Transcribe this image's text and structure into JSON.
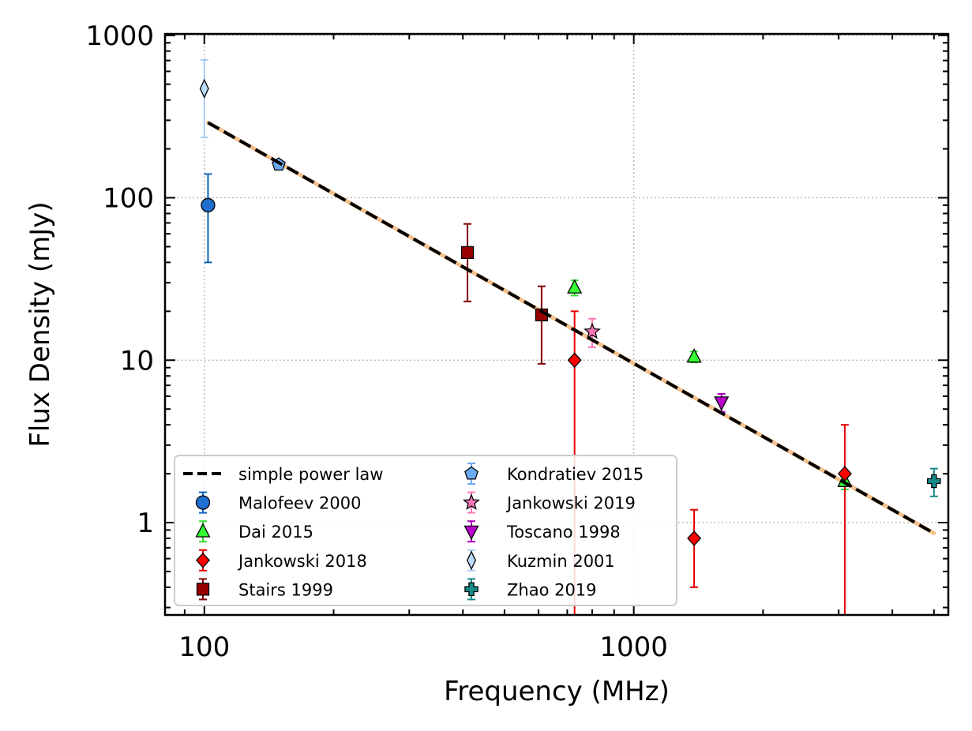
{
  "chart_data": {
    "type": "scatter",
    "xlabel": "Frequency (MHz)",
    "ylabel": "Flux Density (mJy)",
    "xscale": "log",
    "yscale": "log",
    "xlim": [
      81,
      5400
    ],
    "ylim": [
      0.27,
      1020
    ],
    "x_tick_labels": [
      {
        "value": 100,
        "label": "100"
      },
      {
        "value": 1000,
        "label": "1000"
      }
    ],
    "y_tick_labels": [
      {
        "value": 1,
        "label": "1"
      },
      {
        "value": 10,
        "label": "10"
      },
      {
        "value": 100,
        "label": "100"
      },
      {
        "value": 1000,
        "label": "1000"
      }
    ],
    "grid": true,
    "legend_position": "lower-left",
    "power_law": {
      "name": "simple power law",
      "x": [
        102,
        5000
      ],
      "y": [
        290,
        0.86
      ],
      "color": "#000000",
      "band_color": "#f5c08c"
    },
    "series": [
      {
        "name": "Malofeev 2000",
        "marker": "circle",
        "color": "#1f6fd1",
        "ecolor": "#0d63c0",
        "points": [
          {
            "x": 102,
            "y": 90,
            "ylo": 40,
            "yhi": 140
          }
        ]
      },
      {
        "name": "Dai 2015",
        "marker": "triangle-up",
        "color": "#33ff33",
        "ecolor": "#33dd33",
        "points": [
          {
            "x": 728,
            "y": 28,
            "ylo": 25,
            "yhi": 31
          },
          {
            "x": 1382,
            "y": 10.5,
            "ylo": 9.7,
            "yhi": 11.3
          },
          {
            "x": 3100,
            "y": 1.8,
            "ylo": 1.6,
            "yhi": 2.0
          }
        ]
      },
      {
        "name": "Jankowski 2018",
        "marker": "diamond",
        "color": "#ff0000",
        "ecolor": "#e60000",
        "points": [
          {
            "x": 728,
            "y": 10,
            "ylo": 0.27,
            "yhi": 20
          },
          {
            "x": 1382,
            "y": 0.8,
            "ylo": 0.4,
            "yhi": 1.2
          },
          {
            "x": 3100,
            "y": 2.0,
            "ylo": 0.27,
            "yhi": 4.0
          }
        ]
      },
      {
        "name": "Stairs 1999",
        "marker": "square",
        "color": "#990000",
        "ecolor": "#800000",
        "points": [
          {
            "x": 410,
            "y": 46,
            "ylo": 23,
            "yhi": 69
          },
          {
            "x": 610,
            "y": 19,
            "ylo": 9.5,
            "yhi": 28.5
          }
        ]
      },
      {
        "name": "Kondratiev 2015",
        "marker": "pentagon",
        "color": "#6aaaf0",
        "ecolor": "#6aaaf0",
        "points": [
          {
            "x": 149,
            "y": 160,
            "ylo": 150,
            "yhi": 170
          }
        ]
      },
      {
        "name": "Jankowski 2019",
        "marker": "star",
        "color": "#ff77bb",
        "ecolor": "#ff77bb",
        "points": [
          {
            "x": 800,
            "y": 15,
            "ylo": 12,
            "yhi": 18
          }
        ]
      },
      {
        "name": "Toscano 1998",
        "marker": "triangle-down",
        "color": "#bb00cc",
        "ecolor": "#aa00bb",
        "points": [
          {
            "x": 1600,
            "y": 5.5,
            "ylo": 4.8,
            "yhi": 6.2
          }
        ]
      },
      {
        "name": "Kuzmin 2001",
        "marker": "thin-diamond",
        "color": "#bcdcff",
        "ecolor": "#a8ccf5",
        "points": [
          {
            "x": 100,
            "y": 470,
            "ylo": 235,
            "yhi": 705
          }
        ]
      },
      {
        "name": "Zhao 2019",
        "marker": "plus",
        "color": "#148a8a",
        "ecolor": "#148a8a",
        "points": [
          {
            "x": 5000,
            "y": 1.8,
            "ylo": 1.45,
            "yhi": 2.15
          }
        ]
      }
    ]
  }
}
